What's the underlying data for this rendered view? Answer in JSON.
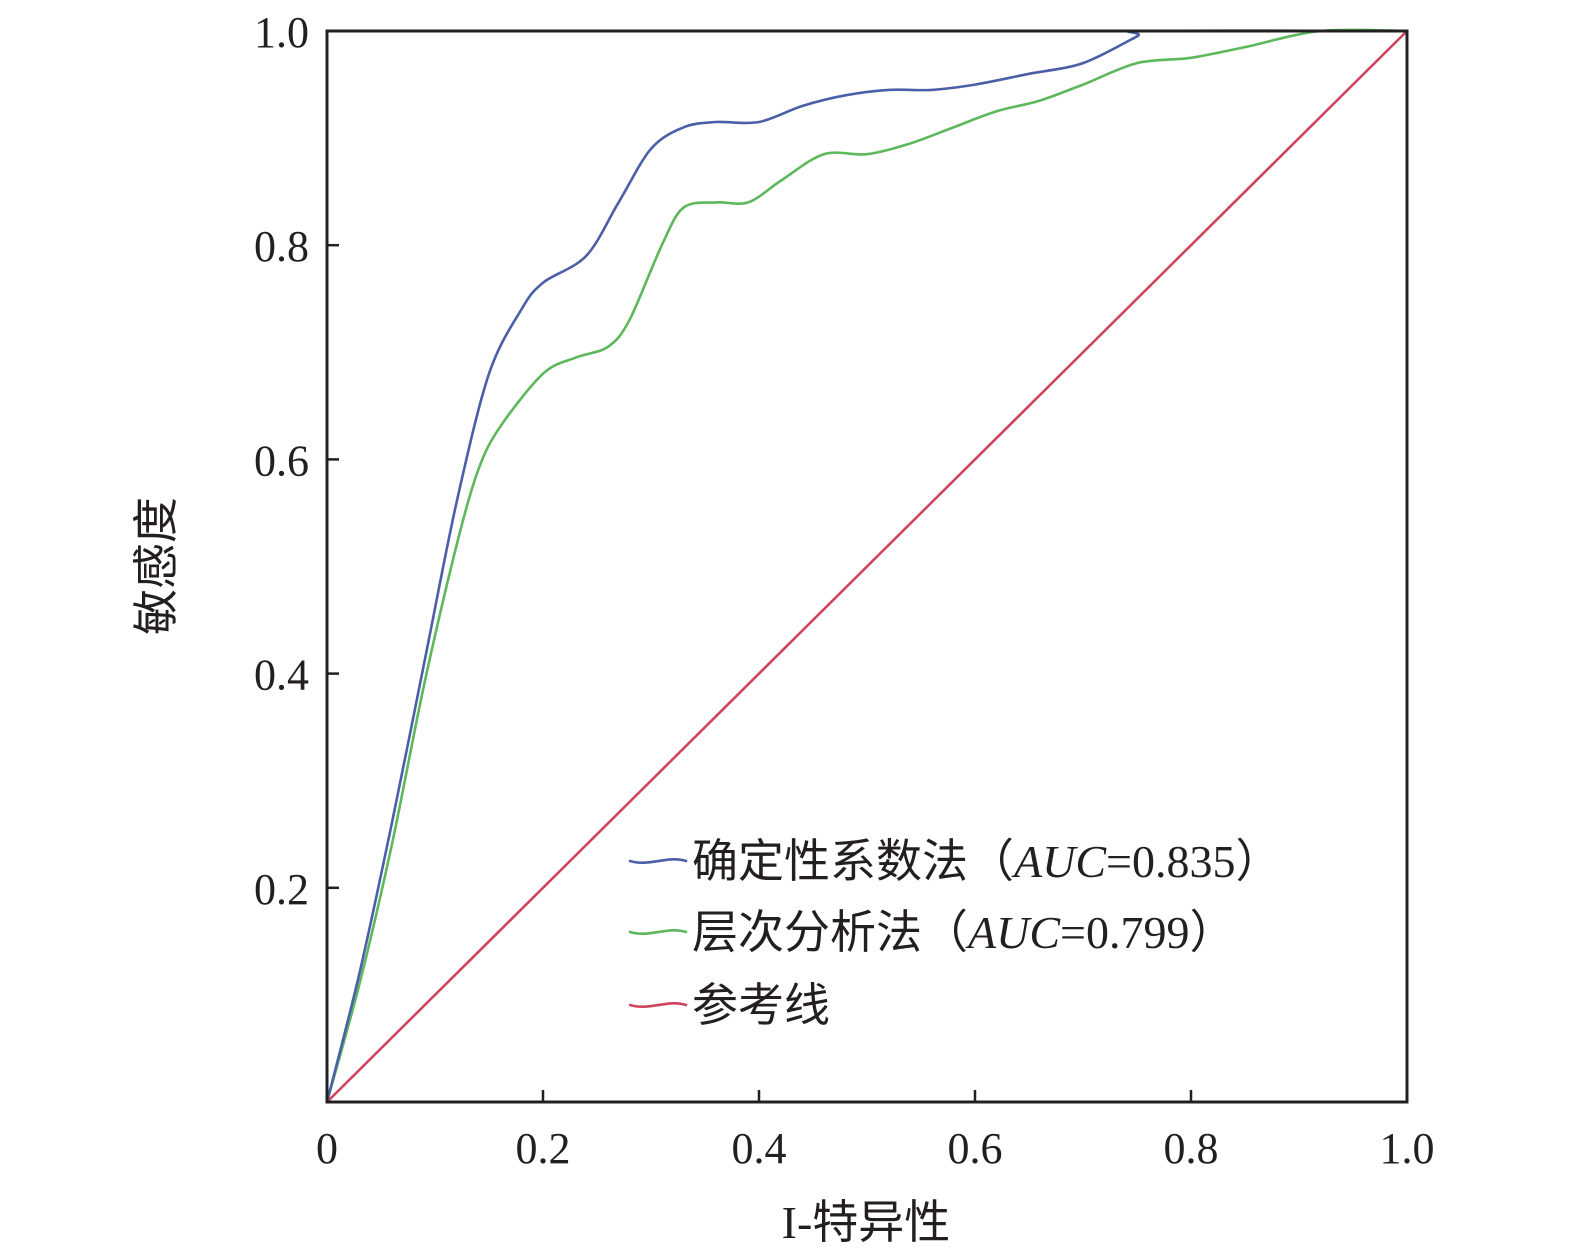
{
  "chart_data": {
    "type": "line",
    "title": "",
    "xlabel": "I-特异性",
    "ylabel": "敏感度",
    "xlim": [
      0,
      1
    ],
    "ylim": [
      0,
      1
    ],
    "x_ticks": [
      0,
      0.2,
      0.4,
      0.6,
      0.8,
      1.0
    ],
    "x_tick_labels": [
      "0",
      "0.2",
      "0.4",
      "0.6",
      "0.8",
      "1.0"
    ],
    "y_ticks": [
      0.2,
      0.4,
      0.6,
      0.8,
      1.0
    ],
    "y_tick_labels": [
      "0.2",
      "0.4",
      "0.6",
      "0.8",
      "1.0"
    ],
    "grid": false,
    "legend_position": "bottom-right",
    "series": [
      {
        "name": "确定性系数法",
        "legend_prefix": "确定性系数法（",
        "legend_auc_label": "AUC",
        "legend_auc_value": "=0.835",
        "legend_suffix": "）",
        "color": "#4a5fa8",
        "x": [
          0,
          0.03,
          0.06,
          0.09,
          0.12,
          0.15,
          0.18,
          0.2,
          0.24,
          0.27,
          0.3,
          0.33,
          0.36,
          0.4,
          0.44,
          0.48,
          0.52,
          0.56,
          0.6,
          0.65,
          0.7,
          0.75,
          0.76,
          1.0
        ],
        "y": [
          0,
          0.12,
          0.26,
          0.41,
          0.56,
          0.68,
          0.74,
          0.765,
          0.79,
          0.84,
          0.89,
          0.91,
          0.915,
          0.915,
          0.93,
          0.94,
          0.945,
          0.945,
          0.95,
          0.96,
          0.97,
          0.995,
          1.0,
          1.0
        ]
      },
      {
        "name": "层次分析法",
        "legend_prefix": "层次分析法（",
        "legend_auc_label": "AUC",
        "legend_auc_value": "=0.799",
        "legend_suffix": "）",
        "color": "#5db85c",
        "x": [
          0,
          0.03,
          0.06,
          0.09,
          0.12,
          0.14,
          0.16,
          0.2,
          0.23,
          0.26,
          0.28,
          0.31,
          0.33,
          0.36,
          0.39,
          0.42,
          0.46,
          0.5,
          0.54,
          0.58,
          0.62,
          0.66,
          0.7,
          0.75,
          0.8,
          0.85,
          0.92,
          1.0
        ],
        "y": [
          0,
          0.11,
          0.24,
          0.39,
          0.52,
          0.59,
          0.63,
          0.68,
          0.695,
          0.705,
          0.73,
          0.8,
          0.835,
          0.84,
          0.84,
          0.86,
          0.885,
          0.885,
          0.895,
          0.91,
          0.925,
          0.935,
          0.95,
          0.97,
          0.975,
          0.985,
          1.0,
          1.0
        ]
      },
      {
        "name": "参考线",
        "legend_prefix": "参考线",
        "color": "#d0455e",
        "x": [
          0,
          1.0
        ],
        "y": [
          0,
          1.0
        ]
      }
    ]
  }
}
